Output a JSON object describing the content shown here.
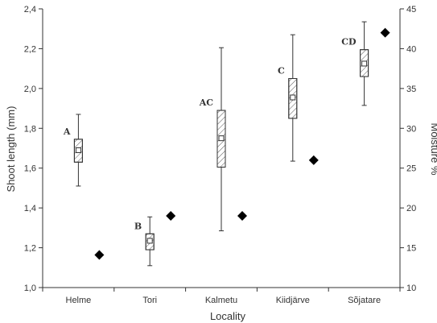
{
  "chart_data": {
    "type": "box",
    "xlabel": "Locality",
    "ylabel": "Shoot length (mm)",
    "y2label": "Moisture  %",
    "categories": [
      "Helme",
      "Tori",
      "Kalmetu",
      "Kiidjärve",
      "Sõjatare"
    ],
    "ylim": [
      1.0,
      2.4
    ],
    "y_ticks": [
      "1,0",
      "1,2",
      "1,4",
      "1,6",
      "1,8",
      "2,0",
      "2,2",
      "2,4"
    ],
    "y2lim": [
      10,
      45
    ],
    "y2_ticks": [
      "10",
      "15",
      "20",
      "25",
      "30",
      "35",
      "40",
      "45"
    ],
    "box_series": [
      {
        "category": "Helme",
        "letter": "A",
        "whisker_low": 1.51,
        "q1": 1.63,
        "mean": 1.69,
        "q3": 1.745,
        "whisker_high": 1.87
      },
      {
        "category": "Tori",
        "letter": "B",
        "whisker_low": 1.11,
        "q1": 1.19,
        "mean": 1.235,
        "q3": 1.27,
        "whisker_high": 1.355
      },
      {
        "category": "Kalmetu",
        "letter": "AC",
        "whisker_low": 1.285,
        "q1": 1.605,
        "mean": 1.75,
        "q3": 1.89,
        "whisker_high": 2.205
      },
      {
        "category": "Kiidjärve",
        "letter": "C",
        "whisker_low": 1.635,
        "q1": 1.85,
        "mean": 1.955,
        "q3": 2.05,
        "whisker_high": 2.27
      },
      {
        "category": "Sõjatare",
        "letter": "CD",
        "whisker_low": 1.915,
        "q1": 2.06,
        "mean": 2.125,
        "q3": 2.195,
        "whisker_high": 2.335
      }
    ],
    "moisture_points": [
      {
        "category": "Helme",
        "value": 14.1
      },
      {
        "category": "Tori",
        "value": 19.0
      },
      {
        "category": "Kalmetu",
        "value": 19.0
      },
      {
        "category": "Kiidjärve",
        "value": 26.0
      },
      {
        "category": "Sõjatare",
        "value": 42.0
      }
    ],
    "colors": {
      "axis": "#333333",
      "box_fill": "#ffffff",
      "hatch": "#555555",
      "marker": "#000000"
    }
  }
}
